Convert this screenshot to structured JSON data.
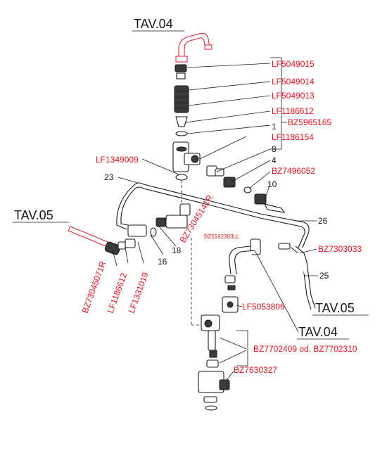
{
  "references": {
    "tav04_top": "TAV.04",
    "tav05_left": "TAV.05",
    "tav05_right": "TAV.05",
    "tav04_right": "TAV.04"
  },
  "labels": {
    "lf5049015": "LF5049015",
    "lf5049014": "LF5049014",
    "lf5049013": "LF5049013",
    "lf1186612_top": "LF1186612",
    "bz5965165": "BZ5965165",
    "num_1": "1",
    "lf1186154": "LF1186154",
    "num_8": "8",
    "num_4": "4",
    "bz7496052": "BZ7496052",
    "num_10": "10",
    "lf1349009": "LF1349009",
    "num_23": "23",
    "bz73045141r": "BZ73045141R",
    "num_26": "26",
    "bz5162303ll": "BZ5162303LL",
    "bz7303033": "BZ7303033",
    "num_25": "25",
    "num_18": "18",
    "num_16": "16",
    "bz73045071r": "BZ73045071R",
    "lf1186612_bottom": "LF1186612",
    "lf1331019": "LF1331019",
    "lf5053806": "LF5053806",
    "bz7702409": "BZ7702409 od. BZ7702310",
    "bz7630327": "BZ7630327"
  },
  "colors": {
    "part_code": "#e8141c",
    "line": "#1a1a1a",
    "pipe_highlight": "#d4202a"
  }
}
